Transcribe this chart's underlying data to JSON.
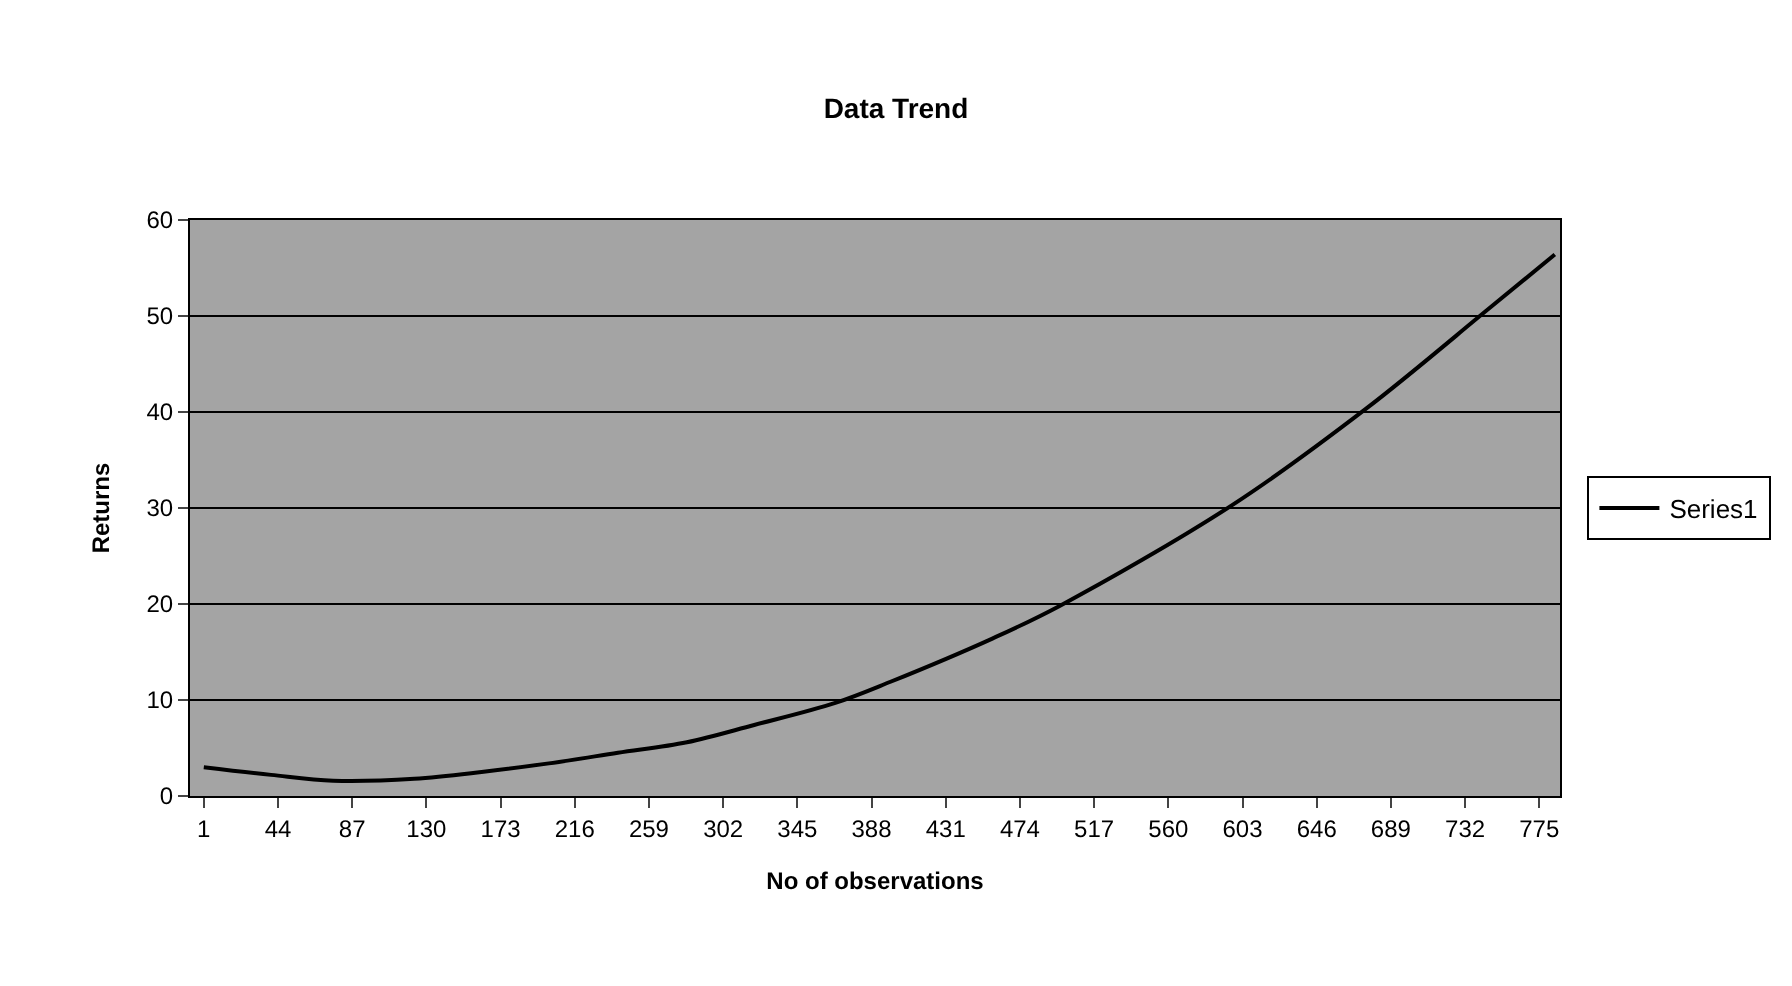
{
  "chart_data": {
    "type": "line",
    "title": "Data Trend",
    "xlabel": "No of observations",
    "ylabel": "Returns",
    "x": [
      1,
      40,
      76,
      123,
      162,
      201,
      241,
      281,
      320,
      367,
      399,
      458,
      497,
      597,
      675,
      746,
      784
    ],
    "series": [
      {
        "name": "Series1",
        "color": "#000000",
        "values": [
          3.0,
          2.2,
          1.6,
          1.8,
          2.5,
          3.4,
          4.5,
          5.6,
          7.4,
          9.7,
          11.9,
          16.4,
          19.8,
          30.3,
          40.4,
          50.8,
          56.4
        ]
      }
    ],
    "xlim": [
      -7,
      787
    ],
    "xticks": [
      1,
      44,
      87,
      130,
      173,
      216,
      259,
      302,
      345,
      388,
      431,
      474,
      517,
      560,
      603,
      646,
      689,
      732,
      775
    ],
    "ylim": [
      0,
      60
    ],
    "yticks": [
      0,
      10,
      20,
      30,
      40,
      50,
      60
    ],
    "grid": "y",
    "legend": "right",
    "marker": "none",
    "line_style": "solid"
  }
}
